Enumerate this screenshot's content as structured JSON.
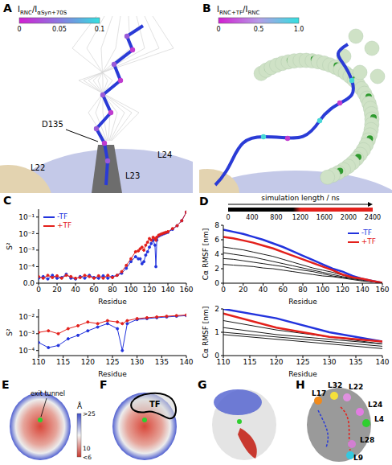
{
  "panels": {
    "A": {
      "letter": "A",
      "colorbar": {
        "label": {
          "numerator": "I",
          "numerator_sub": "RNC",
          "separator": "/",
          "denominator": "I",
          "denominator_sub": "αSyn+70S"
        },
        "range": [
          0,
          0.1
        ],
        "ticks": [
          0,
          0.05,
          0.1
        ]
      },
      "labels": {
        "residue": "D135",
        "proteins": [
          "L22",
          "L24",
          "L23"
        ]
      }
    },
    "B": {
      "letter": "B",
      "colorbar": {
        "label": {
          "numerator": "I",
          "numerator_sub": "RNC+TF",
          "separator": "/",
          "denominator": "I",
          "denominator_sub": "RNC"
        },
        "range": [
          0,
          1
        ],
        "ticks": [
          0,
          0.5,
          {
            "value": 1,
            "label": "1.0"
          }
        ]
      }
    },
    "E": {
      "letter": "E",
      "labels": [
        "exit tunnel"
      ],
      "colorbar": {
        "unit": "Å",
        "range": [
          6,
          25
        ],
        "ticks": [
          {
            "value": 25,
            "label": ">25"
          },
          10,
          {
            "value": 6,
            "label": "<6"
          }
        ]
      }
    },
    "F": {
      "letter": "F",
      "labels": [
        "TF"
      ]
    },
    "G": {
      "letter": "G"
    },
    "H": {
      "letter": "H",
      "labels": [
        "L17",
        "L32",
        "L22",
        "L24",
        "L4",
        "L28",
        "L9"
      ]
    }
  },
  "chart_data": [
    {
      "letter": "C",
      "type": "line",
      "x_label": "Residue",
      "y_label": "S²",
      "log": "y",
      "legend": "top-left",
      "x": [
        0,
        5,
        10,
        15,
        20,
        25,
        30,
        35,
        40,
        45,
        50,
        55,
        60,
        65,
        70,
        75,
        80,
        85,
        90,
        95,
        100,
        105,
        108,
        110,
        112,
        114,
        116,
        118,
        120,
        122,
        124,
        126,
        127,
        128,
        130,
        132,
        134,
        136,
        138,
        140,
        145,
        150,
        155,
        160
      ],
      "series": [
        {
          "name": "-TF",
          "color": "#2233dd",
          "marker": "circle",
          "values": [
            2e-05,
            2.5e-05,
            1.8e-05,
            3e-05,
            2e-05,
            2.2e-05,
            3.5e-05,
            2e-05,
            1.8e-05,
            2.5e-05,
            2e-05,
            3e-05,
            2.2e-05,
            2e-05,
            2.8e-05,
            2e-05,
            2.5e-05,
            3e-05,
            4e-05,
            8e-05,
            0.0002,
            0.0004,
            0.0003,
            0.0003,
            0.00015,
            0.0002,
            0.0005,
            0.0008,
            0.0015,
            0.0025,
            0.004,
            0.002,
            0.0001,
            0.004,
            0.007,
            0.008,
            0.009,
            0.01,
            0.011,
            0.012,
            0.018,
            0.03,
            0.06,
            0.2
          ]
        },
        {
          "name": "+TF",
          "color": "#e3201b",
          "marker": "circle",
          "values": [
            2.5e-05,
            2e-05,
            3e-05,
            2.2e-05,
            2.8e-05,
            2e-05,
            3e-05,
            2.5e-05,
            2e-05,
            2.2e-05,
            3e-05,
            2.5e-05,
            2e-05,
            2.8e-05,
            2e-05,
            3e-05,
            2.2e-05,
            3e-05,
            5e-05,
            0.00012,
            0.0003,
            0.0008,
            0.0009,
            0.0012,
            0.0015,
            0.001,
            0.002,
            0.003,
            0.005,
            0.004,
            0.006,
            0.005,
            0.004,
            0.006,
            0.008,
            0.009,
            0.01,
            0.011,
            0.012,
            0.013,
            0.02,
            0.03,
            0.06,
            0.2
          ]
        }
      ],
      "xlim": [
        0,
        160
      ],
      "xticks": [
        0,
        20,
        40,
        60,
        80,
        100,
        120,
        140,
        160
      ],
      "ylim": [
        1e-05,
        0.3
      ],
      "yticks": [
        {
          "value": 1e-05,
          "label": "0.0"
        },
        {
          "value": 0.0001,
          "label": "10⁻⁴"
        },
        {
          "value": 0.001,
          "label": "10⁻³"
        },
        {
          "value": 0.01,
          "label": "10⁻²"
        },
        {
          "value": 0.1,
          "label": "10⁻¹"
        }
      ],
      "inset": {
        "x_label": "Residue",
        "y_label": "S²",
        "xlim": [
          110,
          140
        ],
        "xticks": [
          110,
          115,
          120,
          125,
          130,
          135,
          140
        ],
        "ylim": [
          5e-05,
          0.03
        ],
        "yticks": [
          {
            "value": 0.0001,
            "label": "10⁻⁴"
          },
          {
            "value": 0.001,
            "label": "10⁻³"
          },
          {
            "value": 0.01,
            "label": "10⁻²"
          }
        ]
      }
    },
    {
      "letter": "D",
      "type": "line",
      "x_label": "Residue",
      "y_label": "Cα RMSF [nm]",
      "legend": "top-right",
      "x": [
        0,
        10,
        20,
        30,
        40,
        50,
        60,
        70,
        80,
        90,
        100,
        110,
        120,
        130,
        140,
        150,
        160
      ],
      "series": [
        {
          "color": "#1a1a1a",
          "values": [
            5.0,
            4.8,
            4.6,
            4.3,
            4.0,
            3.7,
            3.3,
            2.9,
            2.5,
            2.1,
            1.8,
            1.5,
            1.1,
            0.8,
            0.5,
            0.2,
            0.05
          ]
        },
        {
          "color": "#1a1a1a",
          "values": [
            4.2,
            4.0,
            3.8,
            3.6,
            3.3,
            3.0,
            2.7,
            2.4,
            2.1,
            1.8,
            1.5,
            1.2,
            0.9,
            0.7,
            0.5,
            0.2,
            0.05
          ]
        },
        {
          "color": "#1a1a1a",
          "values": [
            3.4,
            3.3,
            3.1,
            2.9,
            2.7,
            2.5,
            2.3,
            2.0,
            1.8,
            1.6,
            1.3,
            1.0,
            0.8,
            0.6,
            0.4,
            0.2,
            0.05
          ]
        },
        {
          "color": "#1a1a1a",
          "values": [
            2.6,
            2.5,
            2.4,
            2.3,
            2.1,
            2.0,
            1.8,
            1.6,
            1.4,
            1.2,
            1.0,
            0.9,
            0.7,
            0.5,
            0.3,
            0.2,
            0.05
          ]
        },
        {
          "name": "-TF",
          "color": "#2233dd",
          "values": [
            7.4,
            7.1,
            6.8,
            6.4,
            6.0,
            5.5,
            5.0,
            4.4,
            3.8,
            3.2,
            2.6,
            2.0,
            1.6,
            1.0,
            0.6,
            0.3,
            0.05
          ]
        },
        {
          "name": "+TF",
          "color": "#e3201b",
          "values": [
            6.4,
            6.2,
            5.9,
            5.6,
            5.2,
            4.8,
            4.3,
            3.8,
            3.3,
            2.8,
            2.3,
            1.8,
            1.2,
            0.8,
            0.6,
            0.3,
            0.05
          ]
        }
      ],
      "xlim": [
        0,
        160
      ],
      "xticks": [
        0,
        20,
        40,
        60,
        80,
        100,
        120,
        140,
        160
      ],
      "ylim": [
        0,
        8
      ],
      "yticks": [
        0,
        2,
        4,
        6,
        8
      ],
      "inset": {
        "x_label": "Residue",
        "y_label": "Cα RMSF [nm]",
        "xlim": [
          110,
          140
        ],
        "xticks": [
          110,
          115,
          120,
          125,
          130,
          135,
          140
        ],
        "ylim": [
          0,
          2
        ],
        "yticks": [
          0,
          1,
          2
        ]
      },
      "colorbar": {
        "label": "simulation length / ns",
        "range": [
          0,
          2400
        ],
        "ticks": [
          0,
          400,
          800,
          1200,
          1600,
          2000,
          2400
        ]
      }
    }
  ]
}
